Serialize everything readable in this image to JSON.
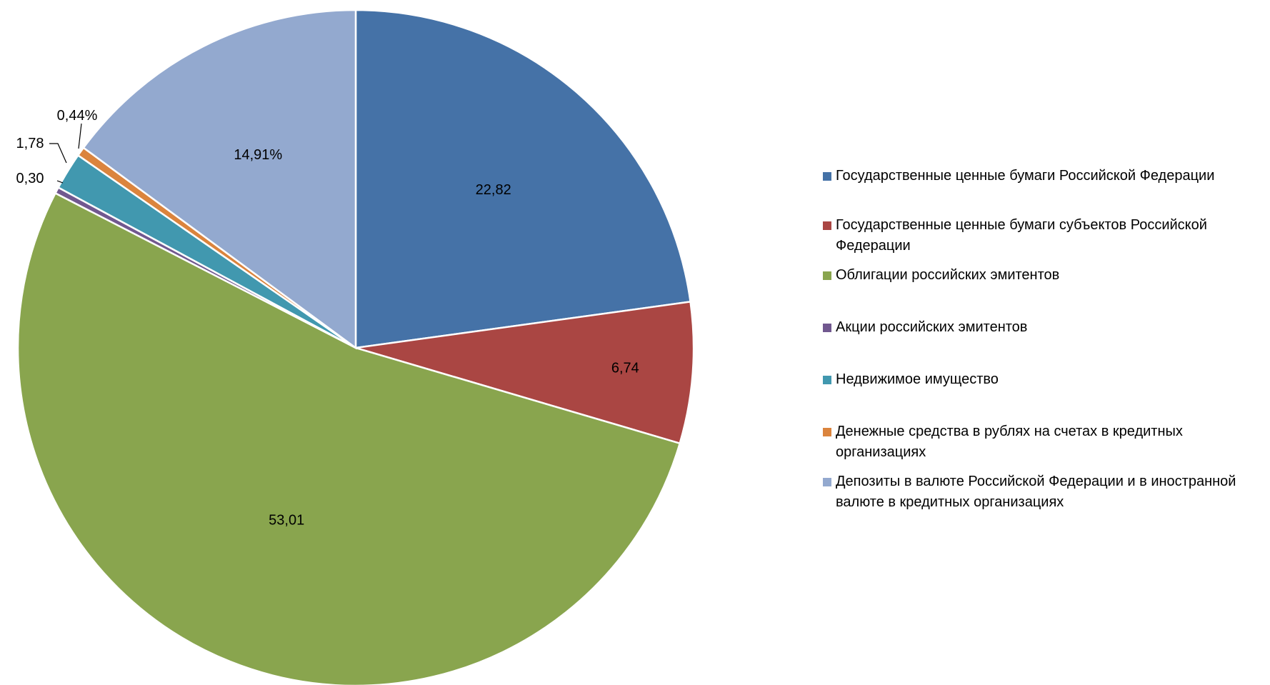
{
  "chart_data": {
    "type": "pie",
    "title": "",
    "start_angle_deg": 0,
    "direction": "clockwise",
    "legend_position": "right",
    "slices": [
      {
        "label": "Государственные ценные бумаги Российской Федерации",
        "value": 22.82,
        "value_label": "22,82",
        "color": "#4572A7"
      },
      {
        "label": "Государственные ценные бумаги субъектов Российской Федерации",
        "value": 6.74,
        "value_label": "6,74",
        "color": "#AA4643"
      },
      {
        "label": "Облигации российских эмитентов",
        "value": 53.01,
        "value_label": "53,01",
        "color": "#89A54E"
      },
      {
        "label": "Акции российских эмитентов",
        "value": 0.3,
        "value_label": "0,30",
        "color": "#71588F"
      },
      {
        "label": "Недвижимое имущество",
        "value": 1.78,
        "value_label": "1,78",
        "color": "#4198AF"
      },
      {
        "label": "Денежные средства в рублях на счетах в кредитных организациях",
        "value": 0.44,
        "value_label": "0,44%",
        "color": "#DB843D"
      },
      {
        "label": "Депозиты в валюте Российской Федерации и в иностранной валюте в кредитных организациях",
        "value": 14.91,
        "value_label": "14,91%",
        "color": "#93A9CF"
      }
    ]
  }
}
